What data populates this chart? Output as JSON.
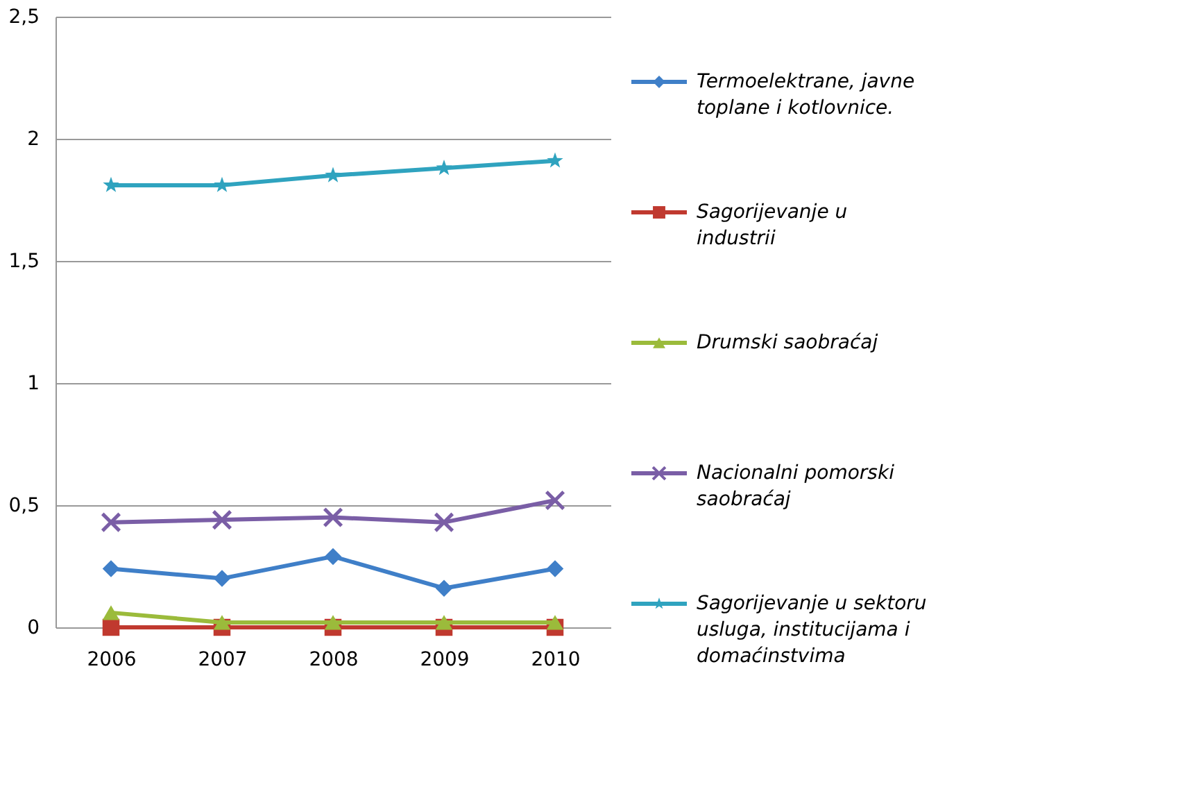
{
  "chart_data": {
    "type": "line",
    "categories": [
      "2006",
      "2007",
      "2008",
      "2009",
      "2010"
    ],
    "series": [
      {
        "name": "Termoelektrane, javne toplane i kotlovnice.",
        "color": "#3f7fc8",
        "marker": "diamond",
        "values": [
          0.24,
          0.2,
          0.29,
          0.16,
          0.24
        ]
      },
      {
        "name": "Sagorijevanje u industrii",
        "color": "#c0392f",
        "marker": "square",
        "values": [
          0.0,
          0.0,
          0.0,
          0.0,
          0.0
        ]
      },
      {
        "name": "Drumski saobraćaj",
        "color": "#9bbb3b",
        "marker": "triangle",
        "values": [
          0.06,
          0.02,
          0.02,
          0.02,
          0.02
        ]
      },
      {
        "name": "Nacionalni pomorski saobraćaj",
        "color": "#7a5ea6",
        "marker": "cross",
        "values": [
          0.43,
          0.44,
          0.45,
          0.43,
          0.52
        ]
      },
      {
        "name": "Sagorijevanje u sektoru usluga, institucijama i domaćinstvima",
        "color": "#2fa3bf",
        "marker": "star",
        "values": [
          1.81,
          1.81,
          1.85,
          1.88,
          1.91
        ]
      }
    ],
    "ylim": [
      0,
      2.5
    ],
    "yticks": [
      0,
      {
        "value": 0.5,
        "label": "0,5"
      },
      1,
      {
        "value": 1.5,
        "label": "1,5"
      },
      2,
      {
        "value": 2.5,
        "label": "2,5"
      }
    ],
    "grid": "y",
    "legend": "right",
    "line_style": "solid"
  }
}
